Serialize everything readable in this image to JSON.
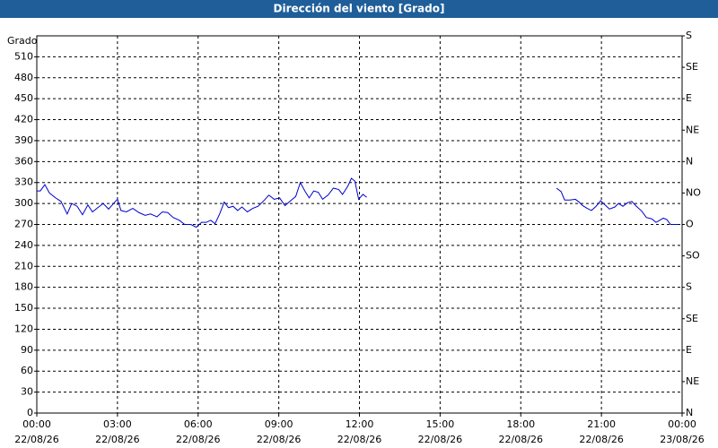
{
  "chart_data": {
    "type": "line",
    "title": "Dirección del viento [Grado]",
    "y_label": "Grado",
    "color": "#0000cc",
    "grid": true,
    "x": [
      0,
      0.13,
      0.3,
      0.47,
      0.7,
      0.9,
      1.13,
      1.3,
      1.5,
      1.7,
      1.9,
      2.07,
      2.3,
      2.47,
      2.67,
      2.9,
      3,
      3.13,
      3.33,
      3.57,
      3.8,
      4.03,
      4.23,
      4.47,
      4.67,
      4.87,
      5.07,
      5.3,
      5.5,
      5.73,
      5.93,
      6.13,
      6.3,
      6.47,
      6.63,
      6.8,
      6.97,
      7.13,
      7.3,
      7.47,
      7.63,
      7.83,
      8.03,
      8.23,
      8.47,
      8.63,
      8.83,
      9.03,
      9.23,
      9.47,
      9.63,
      9.8,
      9.97,
      10.13,
      10.3,
      10.47,
      10.63,
      10.83,
      11.03,
      11.23,
      11.37,
      11.57,
      11.7,
      11.83,
      11.97,
      12.13,
      12.27,
      15.8,
      19.33,
      19.5,
      19.63,
      19.83,
      20.03,
      20.17,
      20.3,
      20.47,
      20.63,
      20.8,
      20.97,
      21.13,
      21.3,
      21.5,
      21.63,
      21.8,
      21.97,
      22.13,
      22.3,
      22.5,
      22.67,
      22.87,
      23.03,
      23.17,
      23.3,
      23.43,
      23.57,
      23.7,
      23.87
    ],
    "values": [
      318,
      318,
      327,
      315,
      308,
      303,
      285,
      300,
      296,
      284,
      298,
      288,
      295,
      300,
      292,
      302,
      306,
      290,
      288,
      293,
      287,
      283,
      285,
      281,
      288,
      287,
      280,
      276,
      270,
      270,
      266,
      273,
      273,
      276,
      271,
      285,
      302,
      294,
      296,
      290,
      295,
      288,
      293,
      296,
      305,
      312,
      306,
      308,
      297,
      305,
      310,
      330,
      318,
      308,
      318,
      316,
      306,
      312,
      322,
      320,
      313,
      325,
      336,
      332,
      306,
      313,
      309,
      null,
      322,
      317,
      305,
      305,
      306,
      302,
      297,
      293,
      290,
      296,
      304,
      298,
      292,
      295,
      300,
      296,
      301,
      303,
      296,
      289,
      280,
      278,
      273,
      276,
      279,
      277,
      270,
      270,
      270
    ],
    "xlim": [
      0,
      24
    ],
    "xticks": [
      {
        "value": 0,
        "label": "00:00",
        "date": "22/08/26"
      },
      {
        "value": 3,
        "label": "03:00",
        "date": "22/08/26"
      },
      {
        "value": 6,
        "label": "06:00",
        "date": "22/08/26"
      },
      {
        "value": 9,
        "label": "09:00",
        "date": "22/08/26"
      },
      {
        "value": 12,
        "label": "12:00",
        "date": "22/08/26"
      },
      {
        "value": 15,
        "label": "15:00",
        "date": "22/08/26"
      },
      {
        "value": 18,
        "label": "18:00",
        "date": "22/08/26"
      },
      {
        "value": 21,
        "label": "21:00",
        "date": "22/08/26"
      },
      {
        "value": 24,
        "label": "00:00",
        "date": "23/08/26"
      }
    ],
    "ylim": [
      0,
      540
    ],
    "yticks": [
      0,
      30,
      60,
      90,
      120,
      150,
      180,
      210,
      240,
      270,
      300,
      330,
      360,
      390,
      420,
      450,
      480,
      510
    ],
    "y2lim": [
      0,
      540
    ],
    "y2ticks": [
      {
        "value": 0,
        "label": "N"
      },
      {
        "value": 45,
        "label": "NE"
      },
      {
        "value": 90,
        "label": "E"
      },
      {
        "value": 135,
        "label": "SE"
      },
      {
        "value": 180,
        "label": "S"
      },
      {
        "value": 225,
        "label": "SO"
      },
      {
        "value": 270,
        "label": "O"
      },
      {
        "value": 315,
        "label": "NO"
      },
      {
        "value": 360,
        "label": "N"
      },
      {
        "value": 405,
        "label": "NE"
      },
      {
        "value": 450,
        "label": "E"
      },
      {
        "value": 495,
        "label": "SE"
      },
      {
        "value": 540,
        "label": "S"
      }
    ]
  }
}
